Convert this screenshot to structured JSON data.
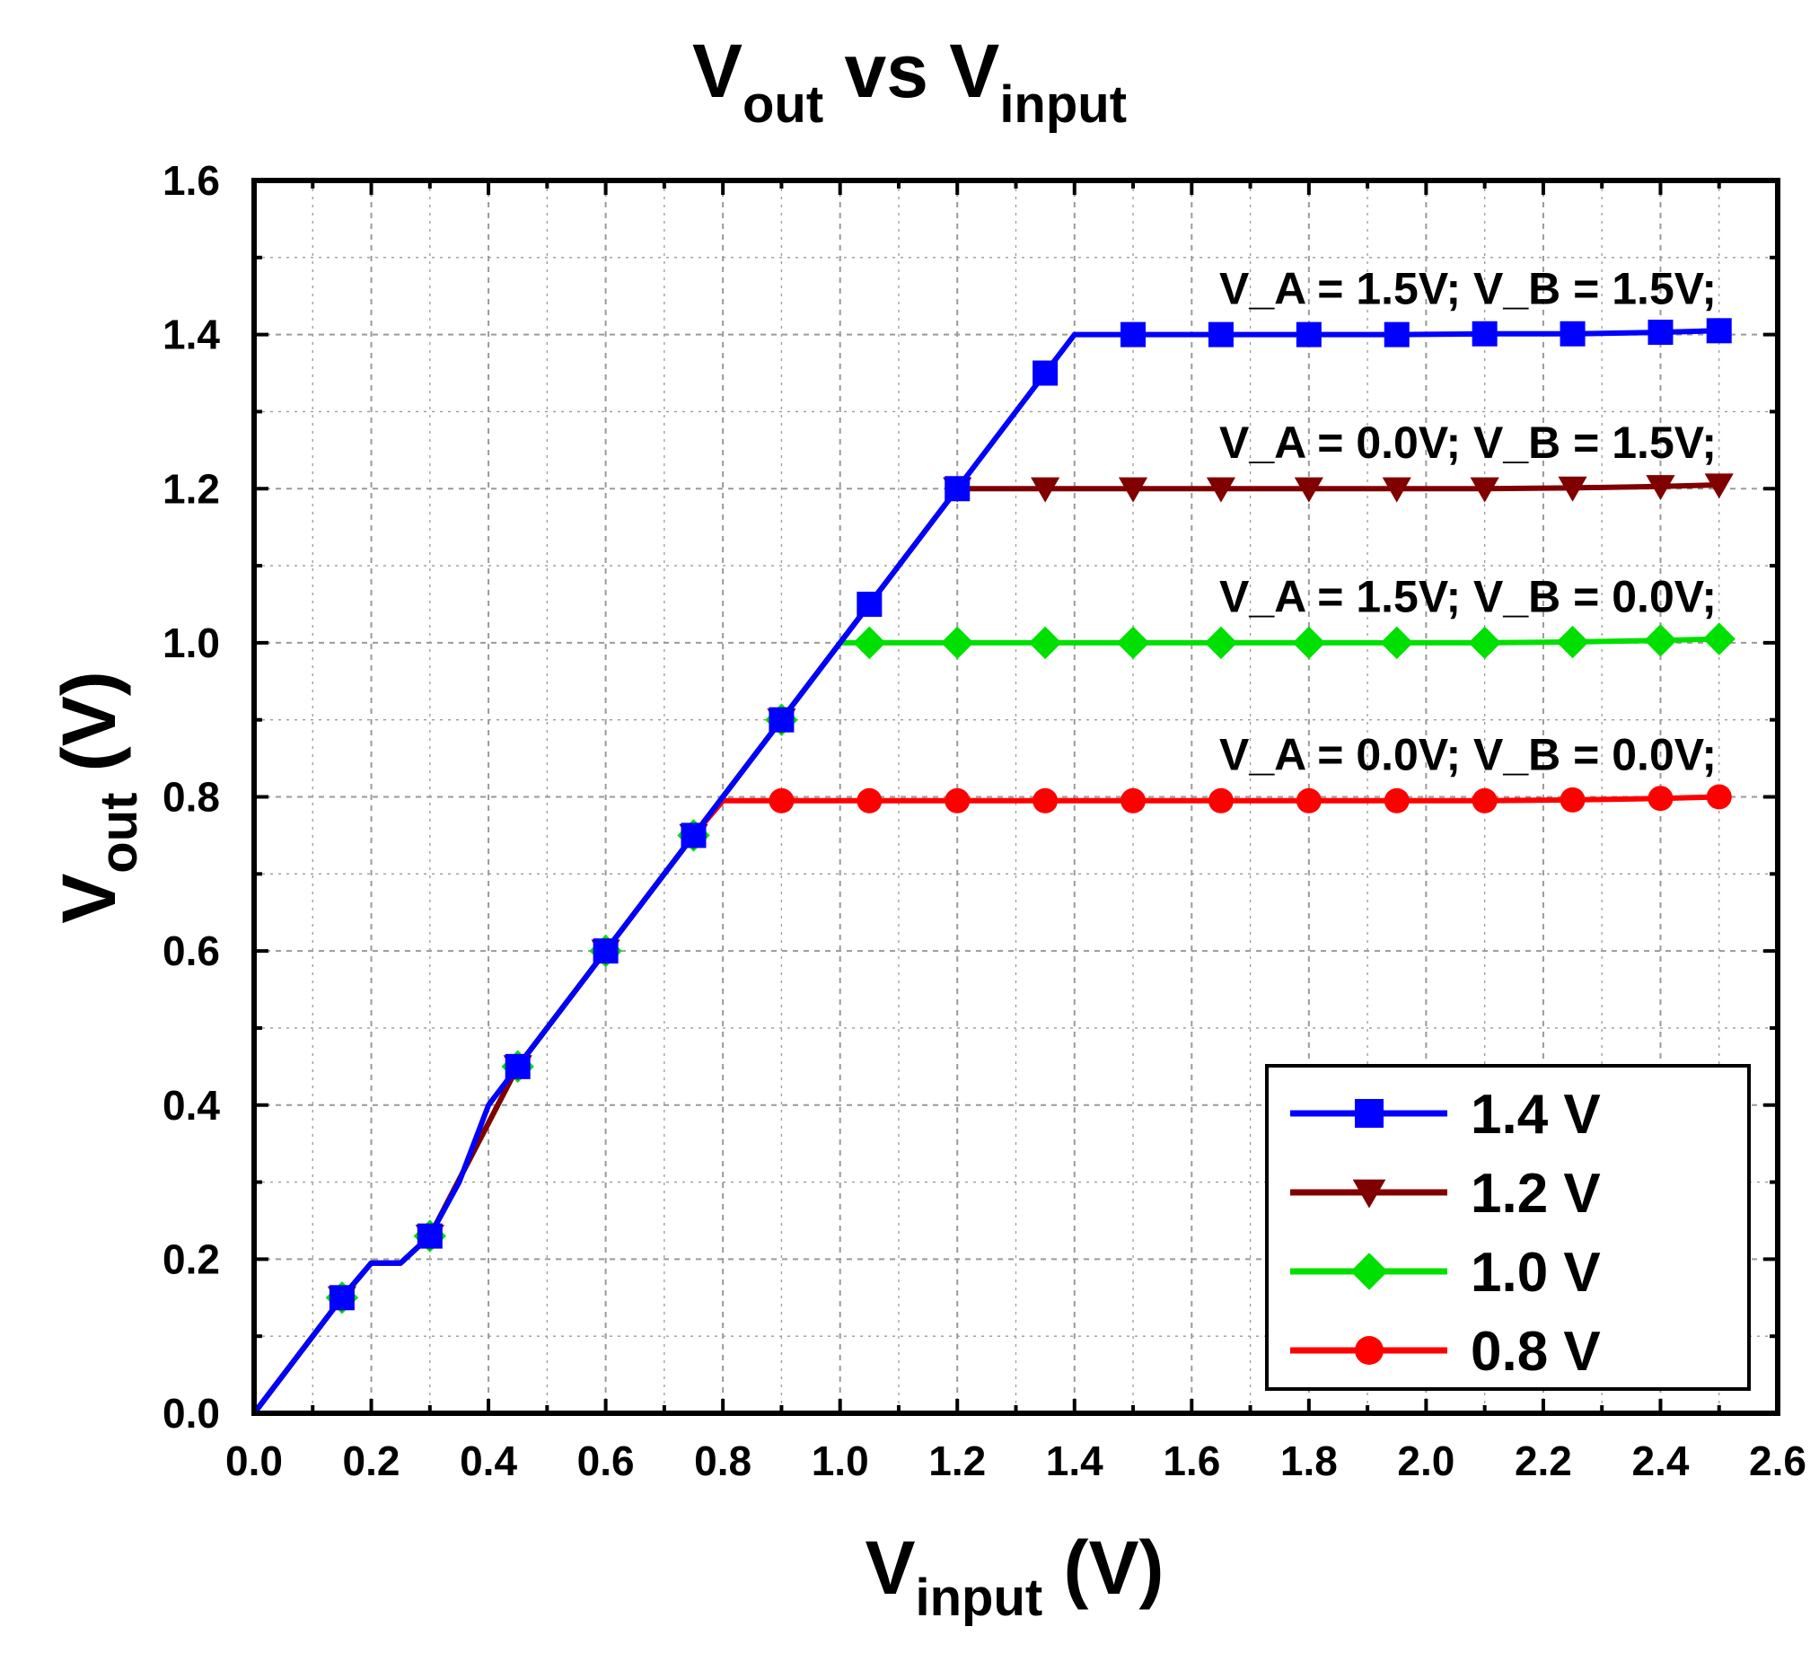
{
  "chart_data": {
    "type": "line",
    "title": {
      "main": "V",
      "sub1": "out",
      "mid": " vs V",
      "sub2": "input"
    },
    "xlabel": {
      "main": "V",
      "sub": "input",
      "suffix": " (V)"
    },
    "ylabel": {
      "main": "V",
      "sub": "out",
      "suffix": " (V)"
    },
    "xlim": [
      0.0,
      2.6
    ],
    "ylim": [
      0.0,
      1.6
    ],
    "xticks": [
      "0.0",
      "0.2",
      "0.4",
      "0.6",
      "0.8",
      "1.0",
      "1.2",
      "1.4",
      "1.6",
      "1.8",
      "2.0",
      "2.2",
      "2.4",
      "2.6"
    ],
    "yticks": [
      "0.0",
      "0.2",
      "0.4",
      "0.6",
      "0.8",
      "1.0",
      "1.2",
      "1.4",
      "1.6"
    ],
    "grid": true,
    "legend_position": "bottom-right",
    "series": [
      {
        "name": "1.4 V",
        "color": "#0000ff",
        "marker": "square",
        "annotation": "V_A = 1.5V; V_B = 1.5V;",
        "line": [
          [
            0.0,
            0.0
          ],
          [
            0.15,
            0.15
          ],
          [
            0.2,
            0.195
          ],
          [
            0.25,
            0.195
          ],
          [
            0.3,
            0.23
          ],
          [
            0.35,
            0.3
          ],
          [
            0.4,
            0.4
          ],
          [
            0.45,
            0.45
          ],
          [
            0.6,
            0.6
          ],
          [
            0.75,
            0.75
          ],
          [
            0.9,
            0.9
          ],
          [
            1.05,
            1.05
          ],
          [
            1.2,
            1.2
          ],
          [
            1.35,
            1.35
          ],
          [
            1.4,
            1.4
          ],
          [
            1.5,
            1.4
          ],
          [
            1.65,
            1.4
          ],
          [
            1.8,
            1.4
          ],
          [
            1.95,
            1.4
          ],
          [
            2.1,
            1.401
          ],
          [
            2.25,
            1.401
          ],
          [
            2.4,
            1.403
          ],
          [
            2.5,
            1.405
          ]
        ],
        "markers": [
          [
            0.15,
            0.15
          ],
          [
            0.3,
            0.23
          ],
          [
            0.45,
            0.45
          ],
          [
            0.6,
            0.6
          ],
          [
            0.75,
            0.75
          ],
          [
            0.9,
            0.9
          ],
          [
            1.05,
            1.05
          ],
          [
            1.2,
            1.2
          ],
          [
            1.35,
            1.35
          ],
          [
            1.5,
            1.4
          ],
          [
            1.65,
            1.4
          ],
          [
            1.8,
            1.4
          ],
          [
            1.95,
            1.4
          ],
          [
            2.1,
            1.401
          ],
          [
            2.25,
            1.401
          ],
          [
            2.4,
            1.403
          ],
          [
            2.5,
            1.405
          ]
        ]
      },
      {
        "name": "1.2 V",
        "color": "#800000",
        "marker": "triangle-down",
        "annotation": "V_A = 0.0V; V_B = 1.5V;",
        "line": [
          [
            0.0,
            0.0
          ],
          [
            0.15,
            0.15
          ],
          [
            0.2,
            0.195
          ],
          [
            0.25,
            0.195
          ],
          [
            0.3,
            0.23
          ],
          [
            0.45,
            0.45
          ],
          [
            0.6,
            0.6
          ],
          [
            0.75,
            0.75
          ],
          [
            0.9,
            0.9
          ],
          [
            1.05,
            1.05
          ],
          [
            1.2,
            1.2
          ],
          [
            1.35,
            1.2
          ],
          [
            1.5,
            1.2
          ],
          [
            1.65,
            1.2
          ],
          [
            1.8,
            1.2
          ],
          [
            1.95,
            1.2
          ],
          [
            2.1,
            1.2
          ],
          [
            2.25,
            1.201
          ],
          [
            2.4,
            1.203
          ],
          [
            2.5,
            1.205
          ]
        ],
        "markers": [
          [
            0.15,
            0.15
          ],
          [
            0.3,
            0.23
          ],
          [
            0.45,
            0.45
          ],
          [
            0.6,
            0.6
          ],
          [
            0.75,
            0.75
          ],
          [
            0.9,
            0.9
          ],
          [
            1.2,
            1.2
          ],
          [
            1.35,
            1.2
          ],
          [
            1.5,
            1.2
          ],
          [
            1.65,
            1.2
          ],
          [
            1.8,
            1.2
          ],
          [
            1.95,
            1.2
          ],
          [
            2.1,
            1.2
          ],
          [
            2.25,
            1.201
          ],
          [
            2.4,
            1.203
          ],
          [
            2.5,
            1.205
          ]
        ]
      },
      {
        "name": "1.0 V",
        "color": "#00e000",
        "marker": "diamond",
        "annotation": "V_A = 1.5V; V_B = 0.0V;",
        "line": [
          [
            0.0,
            0.0
          ],
          [
            0.15,
            0.15
          ],
          [
            0.2,
            0.195
          ],
          [
            0.25,
            0.195
          ],
          [
            0.3,
            0.23
          ],
          [
            0.45,
            0.45
          ],
          [
            0.6,
            0.6
          ],
          [
            0.75,
            0.75
          ],
          [
            0.9,
            0.9
          ],
          [
            1.0,
            1.0
          ],
          [
            1.05,
            1.0
          ],
          [
            1.2,
            1.0
          ],
          [
            1.35,
            1.0
          ],
          [
            1.5,
            1.0
          ],
          [
            1.65,
            1.0
          ],
          [
            1.8,
            1.0
          ],
          [
            1.95,
            1.0
          ],
          [
            2.1,
            1.0
          ],
          [
            2.25,
            1.001
          ],
          [
            2.4,
            1.003
          ],
          [
            2.5,
            1.005
          ]
        ],
        "markers": [
          [
            0.15,
            0.15
          ],
          [
            0.3,
            0.23
          ],
          [
            0.45,
            0.45
          ],
          [
            0.6,
            0.6
          ],
          [
            0.75,
            0.75
          ],
          [
            0.9,
            0.9
          ],
          [
            1.05,
            1.0
          ],
          [
            1.2,
            1.0
          ],
          [
            1.35,
            1.0
          ],
          [
            1.5,
            1.0
          ],
          [
            1.65,
            1.0
          ],
          [
            1.8,
            1.0
          ],
          [
            1.95,
            1.0
          ],
          [
            2.1,
            1.0
          ],
          [
            2.25,
            1.001
          ],
          [
            2.4,
            1.003
          ],
          [
            2.5,
            1.005
          ]
        ]
      },
      {
        "name": "0.8 V",
        "color": "#ff0000",
        "marker": "circle",
        "annotation": "V_A = 0.0V; V_B = 0.0V;",
        "line": [
          [
            0.0,
            0.0
          ],
          [
            0.15,
            0.15
          ],
          [
            0.2,
            0.195
          ],
          [
            0.25,
            0.195
          ],
          [
            0.3,
            0.23
          ],
          [
            0.45,
            0.45
          ],
          [
            0.6,
            0.6
          ],
          [
            0.75,
            0.75
          ],
          [
            0.8,
            0.795
          ],
          [
            0.9,
            0.795
          ],
          [
            1.05,
            0.795
          ],
          [
            1.2,
            0.795
          ],
          [
            1.35,
            0.795
          ],
          [
            1.5,
            0.795
          ],
          [
            1.65,
            0.795
          ],
          [
            1.8,
            0.795
          ],
          [
            1.95,
            0.795
          ],
          [
            2.1,
            0.795
          ],
          [
            2.25,
            0.796
          ],
          [
            2.4,
            0.798
          ],
          [
            2.5,
            0.8
          ]
        ],
        "markers": [
          [
            0.9,
            0.795
          ],
          [
            1.05,
            0.795
          ],
          [
            1.2,
            0.795
          ],
          [
            1.35,
            0.795
          ],
          [
            1.5,
            0.795
          ],
          [
            1.65,
            0.795
          ],
          [
            1.8,
            0.795
          ],
          [
            1.95,
            0.795
          ],
          [
            2.1,
            0.795
          ],
          [
            2.25,
            0.796
          ],
          [
            2.4,
            0.798
          ],
          [
            2.5,
            0.8
          ]
        ]
      }
    ]
  }
}
